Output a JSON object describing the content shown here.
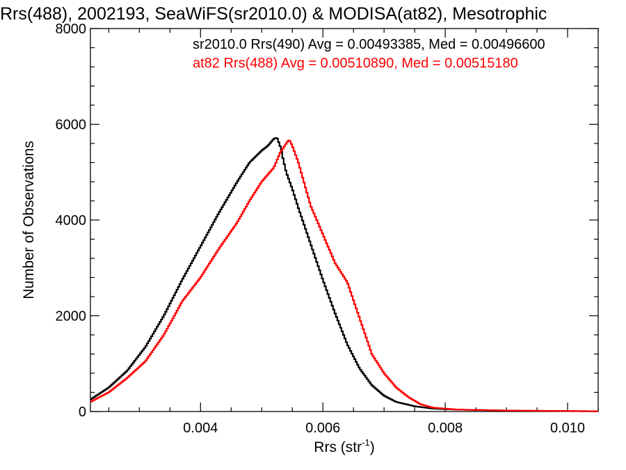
{
  "chart_data": {
    "type": "line",
    "title": "Rrs(488), 2002193, SeaWiFS(sr2010.0) & MODISA(at82), Mesotrophic",
    "xlabel": "Rrs (str",
    "xlabel_sup": "-1",
    "xlabel_close": ")",
    "ylabel": "Number of Observations",
    "xlim": [
      0.0022,
      0.0105
    ],
    "ylim": [
      0,
      8000
    ],
    "x_ticks": [
      0.004,
      0.006,
      0.008,
      0.01
    ],
    "x_tick_labels": [
      "0.004",
      "0.006",
      "0.008",
      "0.010"
    ],
    "y_ticks": [
      0,
      2000,
      4000,
      6000,
      8000
    ],
    "y_tick_labels": [
      "0",
      "2000",
      "4000",
      "6000",
      "8000"
    ],
    "grid": false,
    "legend_position": "top-right",
    "series": [
      {
        "name": "sr2010.0 Rrs(490) Avg = 0.00493385, Med = 0.00496600",
        "color": "#000000",
        "points": [
          [
            0.0022,
            250
          ],
          [
            0.0025,
            500
          ],
          [
            0.0028,
            850
          ],
          [
            0.0031,
            1350
          ],
          [
            0.0034,
            2000
          ],
          [
            0.0037,
            2750
          ],
          [
            0.004,
            3450
          ],
          [
            0.0043,
            4150
          ],
          [
            0.0046,
            4800
          ],
          [
            0.0048,
            5200
          ],
          [
            0.005,
            5450
          ],
          [
            0.0051,
            5550
          ],
          [
            0.0052,
            5700
          ],
          [
            0.00525,
            5720
          ],
          [
            0.0053,
            5550
          ],
          [
            0.0054,
            5000
          ],
          [
            0.0055,
            4650
          ],
          [
            0.0056,
            4250
          ],
          [
            0.0058,
            3500
          ],
          [
            0.006,
            2750
          ],
          [
            0.0062,
            2050
          ],
          [
            0.0064,
            1400
          ],
          [
            0.0066,
            900
          ],
          [
            0.0068,
            550
          ],
          [
            0.007,
            330
          ],
          [
            0.0072,
            200
          ],
          [
            0.0075,
            110
          ],
          [
            0.0078,
            60
          ],
          [
            0.0082,
            40
          ],
          [
            0.009,
            20
          ],
          [
            0.01,
            10
          ],
          [
            0.0105,
            5
          ]
        ]
      },
      {
        "name": "at82 Rrs(488) Avg = 0.00510890, Med = 0.00515180",
        "color": "#ff0000",
        "points": [
          [
            0.0022,
            200
          ],
          [
            0.0025,
            400
          ],
          [
            0.0028,
            700
          ],
          [
            0.0031,
            1050
          ],
          [
            0.0034,
            1600
          ],
          [
            0.0037,
            2300
          ],
          [
            0.004,
            2800
          ],
          [
            0.0043,
            3400
          ],
          [
            0.0046,
            3950
          ],
          [
            0.0048,
            4400
          ],
          [
            0.005,
            4800
          ],
          [
            0.0052,
            5100
          ],
          [
            0.0053,
            5400
          ],
          [
            0.0054,
            5600
          ],
          [
            0.00545,
            5680
          ],
          [
            0.0055,
            5550
          ],
          [
            0.0056,
            5200
          ],
          [
            0.0057,
            4750
          ],
          [
            0.0058,
            4300
          ],
          [
            0.006,
            3700
          ],
          [
            0.0062,
            3100
          ],
          [
            0.0064,
            2700
          ],
          [
            0.0066,
            1950
          ],
          [
            0.0068,
            1200
          ],
          [
            0.007,
            800
          ],
          [
            0.0072,
            500
          ],
          [
            0.0074,
            300
          ],
          [
            0.0076,
            150
          ],
          [
            0.0078,
            80
          ],
          [
            0.0082,
            40
          ],
          [
            0.009,
            20
          ],
          [
            0.01,
            10
          ],
          [
            0.0105,
            5
          ]
        ]
      }
    ]
  }
}
